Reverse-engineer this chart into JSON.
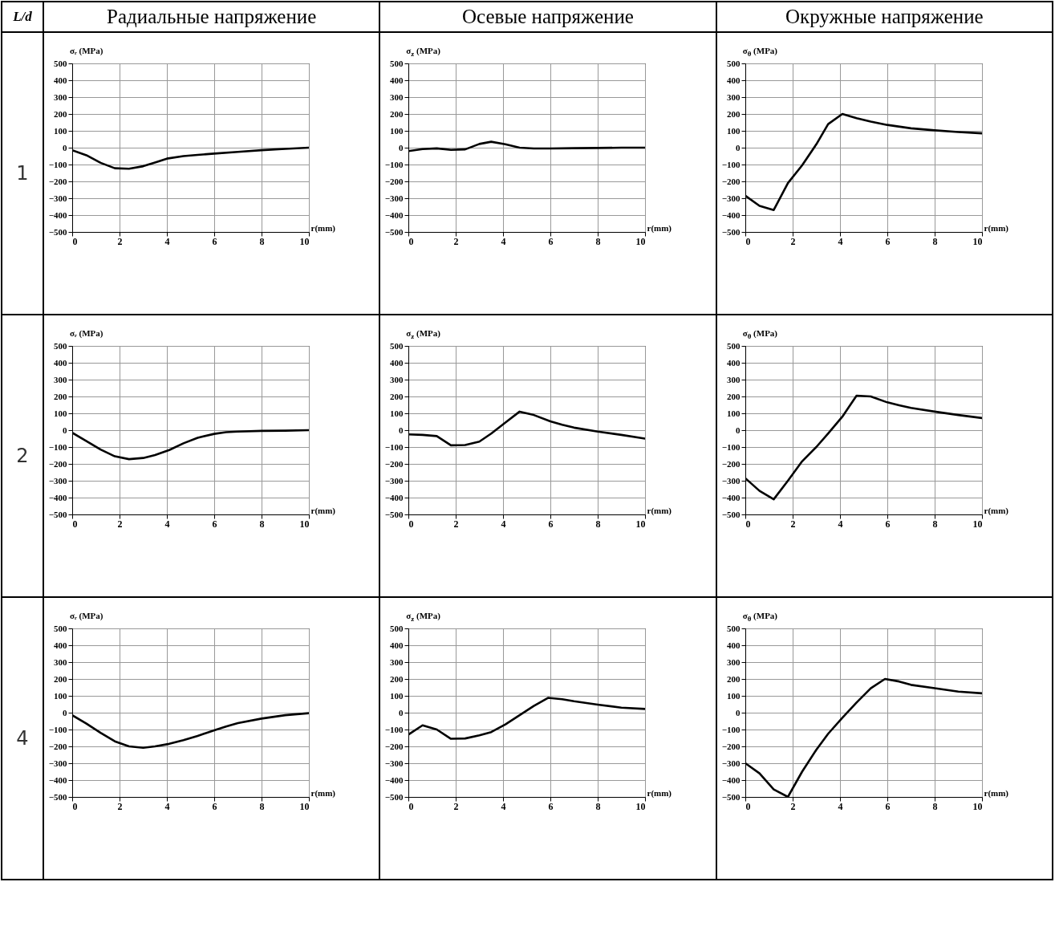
{
  "chart_data": [
    {
      "type": "line",
      "title": "Радиальные напряжение",
      "ylabel": "σᵣ (MPa)",
      "xlabel": "r(mm)",
      "annotations": [
        "L/d",
        "1"
      ],
      "x": [
        0,
        0.6,
        1.2,
        1.8,
        2.4,
        3,
        3.5,
        4,
        4.7,
        5.3,
        6,
        7,
        8,
        9,
        10
      ],
      "series": [
        {
          "color": "#000000",
          "values": [
            -15,
            -45,
            -90,
            -122,
            -125,
            -110,
            -88,
            -65,
            -50,
            -43,
            -35,
            -25,
            -15,
            -7,
            0
          ]
        }
      ],
      "xlim": [
        0,
        10
      ],
      "ylim": [
        -500,
        500
      ],
      "xticks": [
        0,
        2,
        4,
        6,
        8,
        10
      ],
      "yticks": [
        -500,
        -400,
        -300,
        -200,
        -100,
        0,
        100,
        200,
        300,
        400,
        500
      ],
      "grid": true
    },
    {
      "type": "line",
      "title": "Осевые напряжение",
      "ylabel": "σ$_{z}$ (MPa)",
      "xlabel": "r(mm)",
      "x": [
        0,
        0.6,
        1.2,
        1.8,
        2.4,
        3,
        3.5,
        4.1,
        4.7,
        5.3,
        6,
        7,
        8,
        9,
        10
      ],
      "series": [
        {
          "color": "#000000",
          "values": [
            -20,
            -8,
            -4,
            -13,
            -10,
            22,
            35,
            20,
            0,
            -5,
            -5,
            -3,
            -2,
            0,
            0
          ]
        }
      ],
      "xlim": [
        0,
        10
      ],
      "ylim": [
        -500,
        500
      ],
      "xticks": [
        0,
        2,
        4,
        6,
        8,
        10
      ],
      "yticks": [
        -500,
        -400,
        -300,
        -200,
        -100,
        0,
        100,
        200,
        300,
        400,
        500
      ],
      "grid": true
    },
    {
      "type": "line",
      "title": "Окружные напряжение",
      "ylabel": "σ$_{θ}$ (MPa)",
      "xlabel": "r(mm)",
      "x": [
        0,
        0.6,
        1.2,
        1.8,
        2.4,
        3,
        3.5,
        4.1,
        4.7,
        5.3,
        6,
        7,
        8,
        9,
        10
      ],
      "series": [
        {
          "color": "#000000",
          "values": [
            -285,
            -345,
            -370,
            -210,
            -105,
            20,
            140,
            200,
            175,
            155,
            135,
            115,
            103,
            93,
            85
          ]
        }
      ],
      "xlim": [
        0,
        10
      ],
      "ylim": [
        -500,
        500
      ],
      "xticks": [
        0,
        2,
        4,
        6,
        8,
        10
      ],
      "yticks": [
        -500,
        -400,
        -300,
        -200,
        -100,
        0,
        100,
        200,
        300,
        400,
        500
      ],
      "grid": true
    },
    {
      "type": "line",
      "ylabel": "σᵣ (MPa)",
      "xlabel": "r(mm)",
      "annotations": [
        "2"
      ],
      "x": [
        0,
        0.6,
        1.2,
        1.8,
        2.4,
        3,
        3.5,
        4.1,
        4.7,
        5.3,
        6,
        6.5,
        7,
        8,
        9,
        10
      ],
      "series": [
        {
          "color": "#000000",
          "values": [
            -15,
            -65,
            -115,
            -155,
            -172,
            -165,
            -148,
            -118,
            -78,
            -45,
            -22,
            -12,
            -8,
            -4,
            -3,
            0
          ]
        }
      ],
      "xlim": [
        0,
        10
      ],
      "ylim": [
        -500,
        500
      ],
      "xticks": [
        0,
        2,
        4,
        6,
        8,
        10
      ],
      "yticks": [
        -500,
        -400,
        -300,
        -200,
        -100,
        0,
        100,
        200,
        300,
        400,
        500
      ],
      "grid": true
    },
    {
      "type": "line",
      "ylabel": "σ$_{z}$ (MPa)",
      "xlabel": "r(mm)",
      "x": [
        0,
        0.6,
        1.2,
        1.8,
        2.4,
        3,
        3.5,
        4.1,
        4.7,
        5.3,
        6,
        6.5,
        7,
        8,
        9,
        10
      ],
      "series": [
        {
          "color": "#000000",
          "values": [
            -25,
            -28,
            -35,
            -90,
            -88,
            -68,
            -20,
            45,
            110,
            90,
            52,
            32,
            15,
            -8,
            -28,
            -50
          ]
        }
      ],
      "xlim": [
        0,
        10
      ],
      "ylim": [
        -500,
        500
      ],
      "xticks": [
        0,
        2,
        4,
        6,
        8,
        10
      ],
      "yticks": [
        -500,
        -400,
        -300,
        -200,
        -100,
        0,
        100,
        200,
        300,
        400,
        500
      ],
      "grid": true
    },
    {
      "type": "line",
      "ylabel": "σ$_{θ}$ (MPa)",
      "xlabel": "r(mm)",
      "x": [
        0,
        0.6,
        1.2,
        1.8,
        2.4,
        3,
        3.5,
        4.1,
        4.7,
        5.3,
        6,
        6.5,
        7,
        8,
        9,
        10
      ],
      "series": [
        {
          "color": "#000000",
          "values": [
            -285,
            -360,
            -410,
            -300,
            -185,
            -100,
            -20,
            80,
            205,
            200,
            165,
            148,
            132,
            110,
            90,
            72
          ]
        }
      ],
      "xlim": [
        0,
        10
      ],
      "ylim": [
        -500,
        500
      ],
      "xticks": [
        0,
        2,
        4,
        6,
        8,
        10
      ],
      "yticks": [
        -500,
        -400,
        -300,
        -200,
        -100,
        0,
        100,
        200,
        300,
        400,
        500
      ],
      "grid": true
    },
    {
      "type": "line",
      "ylabel": "σᵣ (MPa)",
      "xlabel": "r(mm)",
      "annotations": [
        "4"
      ],
      "x": [
        0,
        0.6,
        1.2,
        1.8,
        2.4,
        3,
        3.5,
        4.1,
        4.7,
        5.3,
        6,
        6.5,
        7,
        8,
        9,
        10
      ],
      "series": [
        {
          "color": "#000000",
          "values": [
            -15,
            -65,
            -120,
            -170,
            -200,
            -208,
            -200,
            -185,
            -163,
            -138,
            -105,
            -82,
            -62,
            -35,
            -15,
            -3
          ]
        }
      ],
      "xlim": [
        0,
        10
      ],
      "ylim": [
        -500,
        500
      ],
      "xticks": [
        0,
        2,
        4,
        6,
        8,
        10
      ],
      "yticks": [
        -500,
        -400,
        -300,
        -200,
        -100,
        0,
        100,
        200,
        300,
        400,
        500
      ],
      "grid": true
    },
    {
      "type": "line",
      "ylabel": "σ$_{z}$ (MPa)",
      "xlabel": "r(mm)",
      "x": [
        0,
        0.6,
        1.2,
        1.8,
        2.4,
        3,
        3.5,
        4.1,
        4.7,
        5.3,
        5.9,
        6.5,
        7,
        8,
        9,
        10
      ],
      "series": [
        {
          "color": "#000000",
          "values": [
            -130,
            -75,
            -100,
            -155,
            -153,
            -135,
            -115,
            -70,
            -15,
            40,
            88,
            80,
            68,
            48,
            30,
            22
          ]
        }
      ],
      "xlim": [
        0,
        10
      ],
      "ylim": [
        -500,
        500
      ],
      "xticks": [
        0,
        2,
        4,
        6,
        8,
        10
      ],
      "yticks": [
        -500,
        -400,
        -300,
        -200,
        -100,
        0,
        100,
        200,
        300,
        400,
        500
      ],
      "grid": true
    },
    {
      "type": "line",
      "ylabel": "σ$_{θ}$ (MPa)",
      "xlabel": "r(mm)",
      "x": [
        0,
        0.6,
        1.2,
        1.8,
        2.4,
        3,
        3.5,
        4.1,
        4.7,
        5.3,
        5.9,
        6.5,
        7,
        8,
        9,
        10
      ],
      "series": [
        {
          "color": "#000000",
          "values": [
            -300,
            -360,
            -455,
            -500,
            -350,
            -220,
            -125,
            -30,
            60,
            145,
            200,
            185,
            165,
            145,
            125,
            115
          ]
        }
      ],
      "xlim": [
        0,
        10
      ],
      "ylim": [
        -500,
        500
      ],
      "xticks": [
        0,
        2,
        4,
        6,
        8,
        10
      ],
      "yticks": [
        -500,
        -400,
        -300,
        -200,
        -100,
        0,
        100,
        200,
        300,
        400,
        500
      ],
      "grid": true
    }
  ]
}
